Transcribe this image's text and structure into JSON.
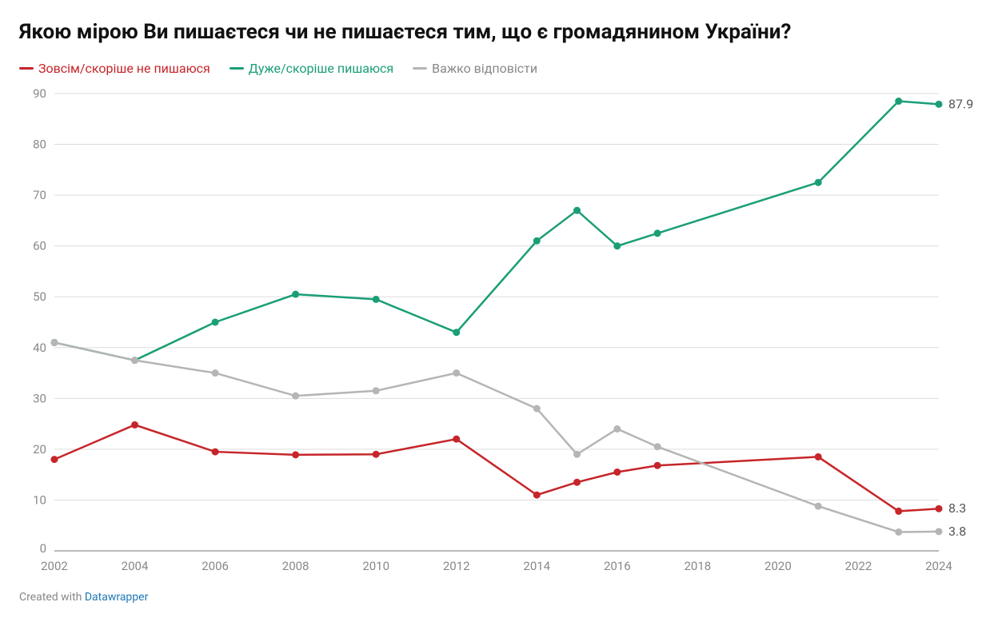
{
  "title": "Якою мірою Ви пишаєтеся чи не пишаєтеся тим, що є громадянином України?",
  "footer_prefix": "Created with ",
  "footer_link": "Datawrapper",
  "chart": {
    "type": "line",
    "background_color": "#ffffff",
    "grid_color": "#dddddd",
    "baseline_color": "#777777",
    "axis_text_color": "#888888",
    "title_fontsize": 26,
    "axis_fontsize": 15,
    "legend_fontsize": 16,
    "endlabel_fontsize": 16,
    "x_years": [
      2002,
      2004,
      2006,
      2008,
      2010,
      2012,
      2014,
      2015,
      2016,
      2017,
      2021,
      2023,
      2024
    ],
    "xlim": [
      2002,
      2024
    ],
    "xtick_step": 2,
    "ylim": [
      0,
      90
    ],
    "ytick_step": 10,
    "marker_radius": 4.5,
    "line_width": 2.5,
    "series": [
      {
        "key": "not_proud",
        "label": "Зовсім/скоріше не пишаюся",
        "color": "#c6252a",
        "values": [
          18.0,
          24.8,
          19.5,
          18.9,
          19.0,
          22.0,
          11.0,
          13.5,
          15.5,
          16.8,
          18.5,
          7.8,
          8.3
        ],
        "end_label": "8.3"
      },
      {
        "key": "proud",
        "label": "Дуже/скоріше пишаюся",
        "color": "#1a9e77",
        "values": [
          41.0,
          37.5,
          45.0,
          50.5,
          49.5,
          43.0,
          61.0,
          67.0,
          60.0,
          62.5,
          72.5,
          88.5,
          87.9
        ],
        "end_label": "87.9"
      },
      {
        "key": "hard_to_say",
        "label": "Важко відповісти",
        "color": "#b5b5b5",
        "values": [
          41.0,
          37.5,
          35.0,
          30.5,
          31.5,
          35.0,
          28.0,
          19.0,
          24.0,
          20.5,
          8.8,
          3.7,
          3.8
        ],
        "end_label": "3.8"
      }
    ]
  }
}
